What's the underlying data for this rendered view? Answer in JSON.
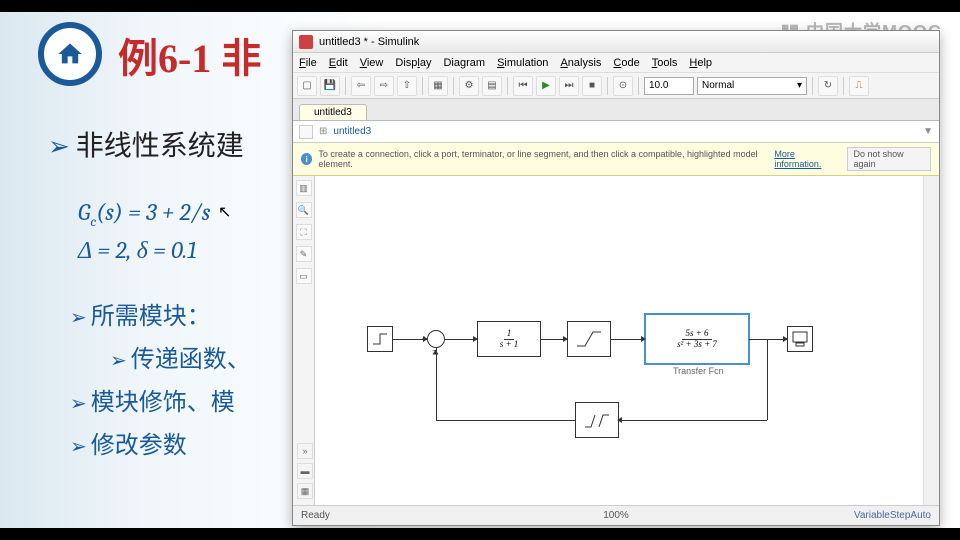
{
  "watermark": "中国大学MOOC",
  "slide": {
    "title": "例6-1 非",
    "main_bullet": "非线性系统建",
    "eq1_html": "G<sub>c</sub>(s) = 3 + 2/s",
    "eq2_html": "Δ = 2, δ = 0.1",
    "sub1": "所需模块：",
    "sub2": "传递函数、",
    "sub3": "模块修饰、模",
    "sub4": "修改参数"
  },
  "simulink": {
    "title": "untitled3 * - Simulink",
    "menus": [
      "File",
      "Edit",
      "View",
      "Display",
      "Diagram",
      "Simulation",
      "Analysis",
      "Code",
      "Tools",
      "Help"
    ],
    "sim_time": "10.0",
    "sim_mode": "Normal",
    "tab_name": "untitled3",
    "breadcrumb": "untitled3",
    "info_text": "To create a connection, click a port, terminator, or line segment, and then click a compatible, highlighted model element.",
    "info_link": "More information.",
    "info_dismiss": "Do not show again",
    "status_left": "Ready",
    "status_center": "100%",
    "status_right": "VariableStepAuto",
    "blocks": {
      "tf1_num": "1",
      "tf1_den": "s + 1",
      "tf2_num": "5s + 6",
      "tf2_den": "s² + 3s + 7",
      "tf2_label": "Transfer Fcn"
    }
  }
}
